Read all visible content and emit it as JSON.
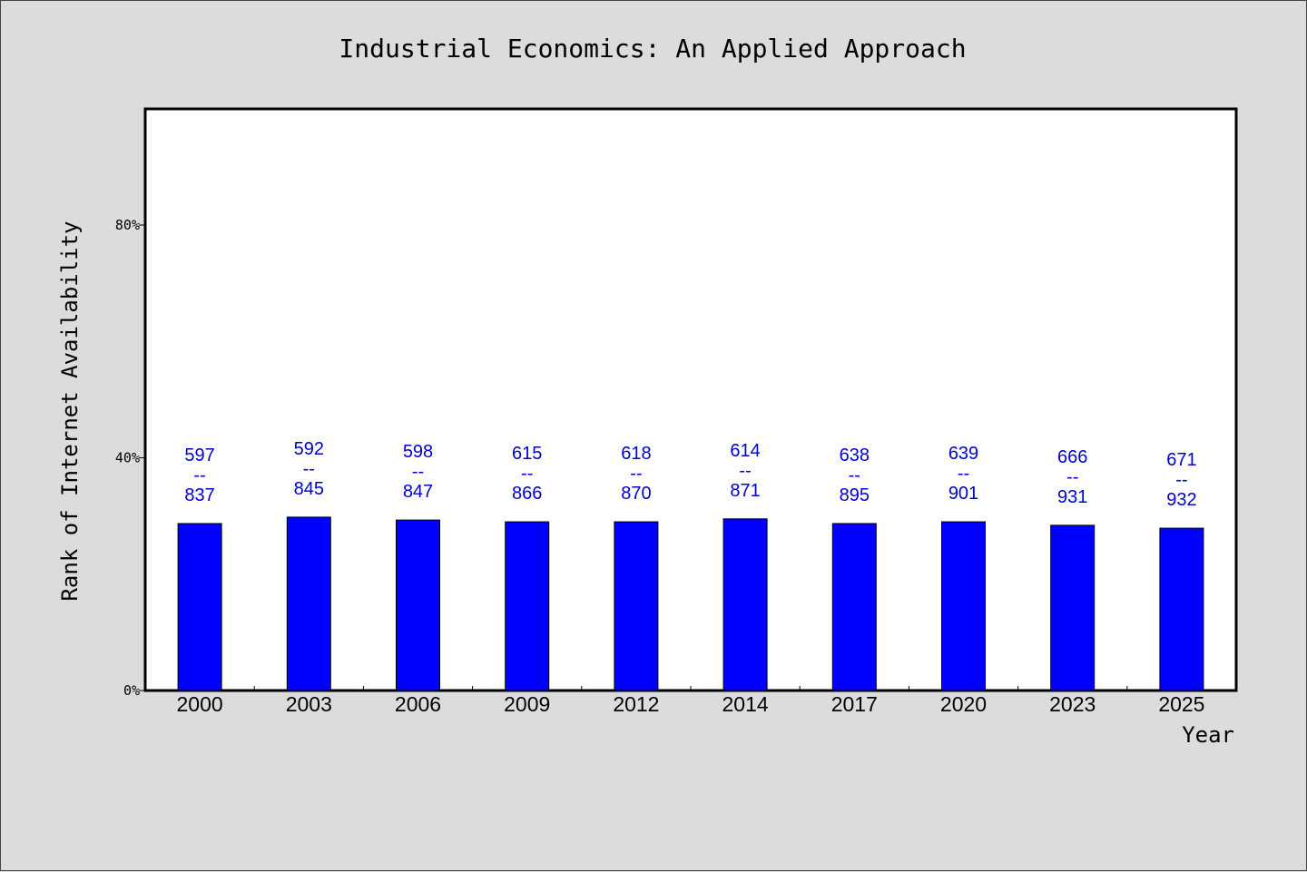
{
  "chart_data": {
    "type": "bar",
    "title": "Industrial Economics: An Applied Approach",
    "xlabel": "Year",
    "ylabel": "Rank of Internet Availability",
    "categories": [
      "2000",
      "2003",
      "2006",
      "2009",
      "2012",
      "2014",
      "2017",
      "2020",
      "2023",
      "2025"
    ],
    "values": [
      0.287,
      0.298,
      0.293,
      0.29,
      0.29,
      0.295,
      0.287,
      0.29,
      0.284,
      0.279
    ],
    "labels_top": [
      "597",
      "592",
      "598",
      "615",
      "618",
      "614",
      "638",
      "639",
      "666",
      "671"
    ],
    "labels_bottom": [
      "837",
      "845",
      "847",
      "866",
      "870",
      "871",
      "895",
      "901",
      "931",
      "932"
    ],
    "label_separator": "--",
    "yticks": [
      "0%",
      "40%",
      "80%"
    ],
    "ytick_values": [
      0,
      0.4,
      0.8
    ],
    "ylim": [
      0,
      1.0
    ],
    "grid": false,
    "bar_color": "#0000ff",
    "label_color": "#0000cc"
  }
}
